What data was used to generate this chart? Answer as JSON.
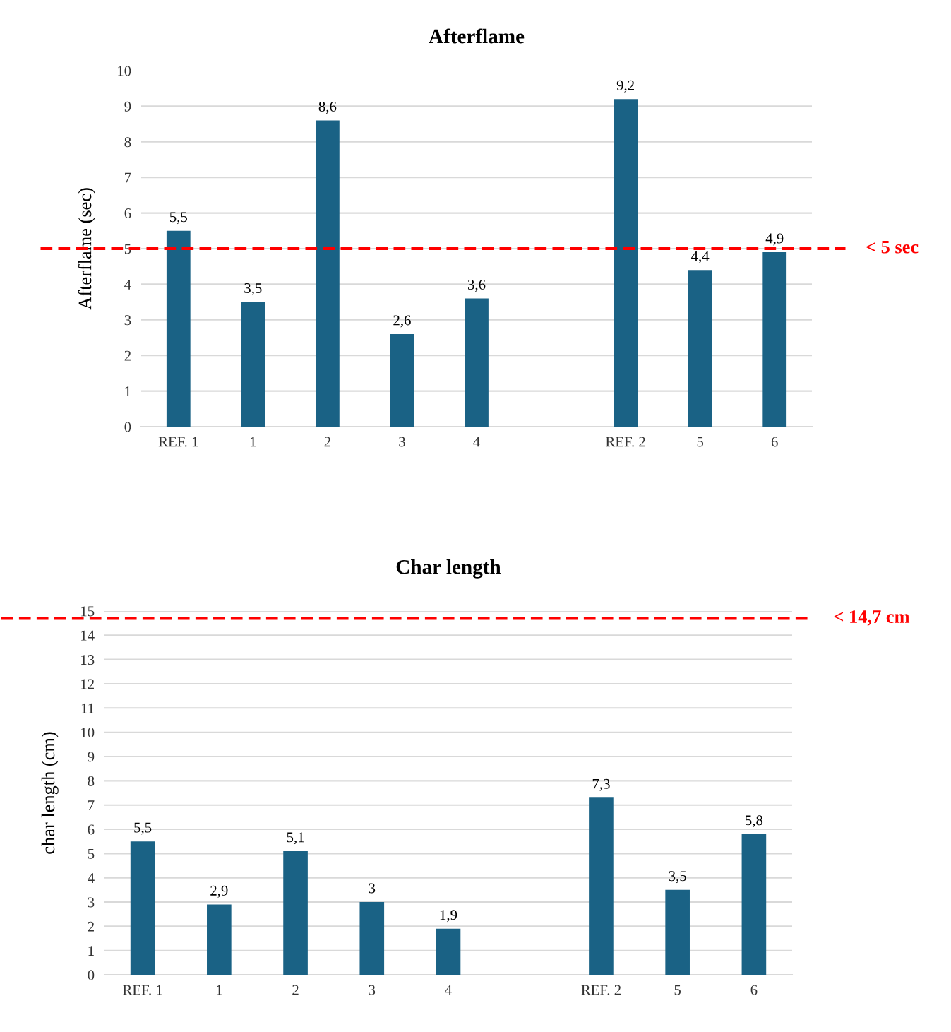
{
  "chart_data": [
    {
      "type": "bar",
      "title": "Afterflame",
      "ylabel": "Afterflame (sec)",
      "categories": [
        "REF. 1",
        "1",
        "2",
        "3",
        "4",
        null,
        "REF. 2",
        "5",
        "6"
      ],
      "values": [
        5.5,
        3.5,
        8.6,
        2.6,
        3.6,
        null,
        9.2,
        4.4,
        4.9
      ],
      "value_labels": [
        "5,5",
        "3,5",
        "8,6",
        "2,6",
        "3,6",
        null,
        "9,2",
        "4,4",
        "4,9"
      ],
      "color": "#1a6285",
      "ylim": [
        0,
        10
      ],
      "yticks": [
        0,
        1,
        2,
        3,
        4,
        5,
        6,
        7,
        8,
        9,
        10
      ],
      "grid": "y",
      "legend": false,
      "ref_lines": [
        {
          "axis": "y",
          "value": 5,
          "label": "< 5 sec",
          "color": "#ff0000",
          "line_style": "dashed"
        }
      ]
    },
    {
      "type": "bar",
      "title": "Char length",
      "ylabel": "char length (cm)",
      "categories": [
        "REF. 1",
        "1",
        "2",
        "3",
        "4",
        null,
        "REF. 2",
        "5",
        "6"
      ],
      "values": [
        5.5,
        2.9,
        5.1,
        3,
        1.9,
        null,
        7.3,
        3.5,
        5.8
      ],
      "value_labels": [
        "5,5",
        "2,9",
        "5,1",
        "3",
        "1,9",
        null,
        "7,3",
        "3,5",
        "5,8"
      ],
      "color": "#1a6285",
      "ylim": [
        0,
        15
      ],
      "yticks": [
        0,
        1,
        2,
        3,
        4,
        5,
        6,
        7,
        8,
        9,
        10,
        11,
        12,
        13,
        14,
        15
      ],
      "grid": "y",
      "legend": false,
      "ref_lines": [
        {
          "axis": "y",
          "value": 14.7,
          "label": "< 14,7 cm",
          "color": "#ff0000",
          "line_style": "dashed"
        }
      ]
    }
  ]
}
